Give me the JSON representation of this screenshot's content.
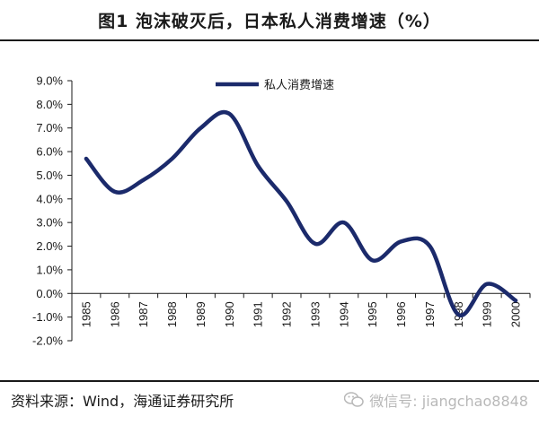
{
  "figure": {
    "title": "图1  泡沫破灭后，日本私人消费增速（%）",
    "source": "资料来源：Wind，海通证券研究所",
    "watermark": "微信号: jiangchao8848"
  },
  "colors": {
    "series": "#1b2a6b",
    "axis": "#1a1a1a",
    "watermark": "#b8b8b8"
  },
  "chart_data": {
    "type": "line",
    "title": "",
    "xlabel": "",
    "ylabel": "",
    "x": [
      "1985",
      "1986",
      "1987",
      "1988",
      "1989",
      "1990",
      "1991",
      "1992",
      "1993",
      "1994",
      "1995",
      "1996",
      "1997",
      "1998",
      "1999",
      "2000"
    ],
    "series": [
      {
        "name": "私人消费增速",
        "values": [
          5.7,
          4.3,
          4.8,
          5.7,
          7.0,
          7.6,
          5.4,
          3.9,
          2.1,
          3.0,
          1.4,
          2.2,
          2.0,
          -0.9,
          0.4,
          -0.3
        ]
      }
    ],
    "yticks": [
      "9.0%",
      "8.0%",
      "7.0%",
      "6.0%",
      "5.0%",
      "4.0%",
      "3.0%",
      "2.0%",
      "1.0%",
      "0.0%",
      "-1.0%",
      "-2.0%"
    ],
    "ylim": [
      -2.0,
      9.0
    ],
    "grid": false,
    "legend_position": "top-center"
  }
}
